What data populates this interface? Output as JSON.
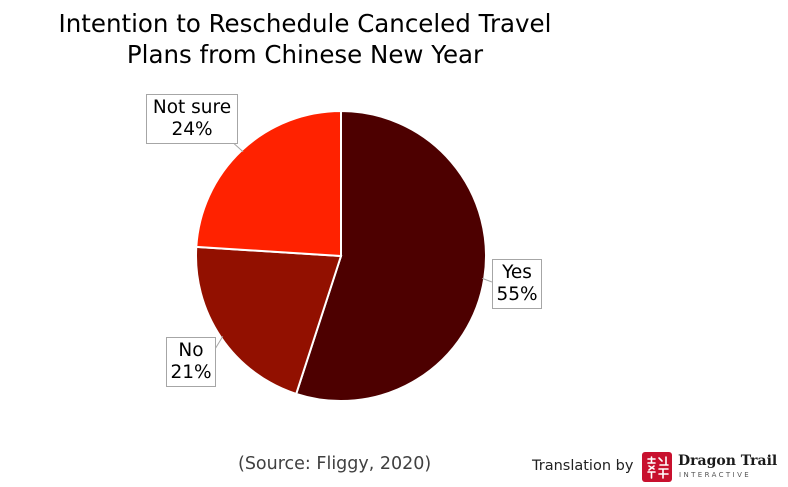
{
  "chart_data": {
    "type": "pie",
    "title": "Intention to Reschedule Canceled Travel Plans from Chinese New Year",
    "title_lines": [
      "Intention to Reschedule Canceled Travel",
      "Plans from Chinese New Year"
    ],
    "slices": [
      {
        "label": "Yes",
        "value": 55,
        "value_label": "55%",
        "color": "#4d0000"
      },
      {
        "label": "No",
        "value": 21,
        "value_label": "21%",
        "color": "#921000"
      },
      {
        "label": "Not sure",
        "value": 24,
        "value_label": "24%",
        "color": "#ff2200"
      }
    ],
    "start_angle_deg": 0,
    "direction": "clockwise",
    "data_labels": "callouts with leader lines"
  },
  "footer": {
    "source": "(Source: Fliggy, 2020)",
    "credit": "Translation by",
    "logo_name": "Dragon Trail",
    "logo_tagline": "INTERACTIVE"
  }
}
